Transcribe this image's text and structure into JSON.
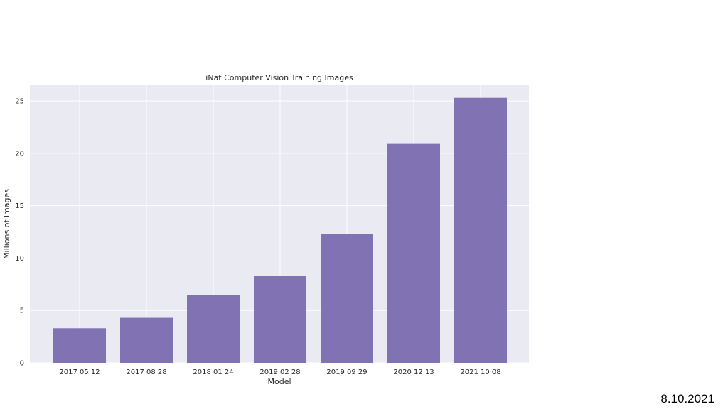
{
  "slide": {
    "date": "8.10.2021"
  },
  "chart_data": {
    "type": "bar",
    "title": "iNat Computer Vision Training Images",
    "xlabel": "Model",
    "ylabel": "Millions of Images",
    "categories": [
      "2017 05 12",
      "2017 08 28",
      "2018 01 24",
      "2019 02 28",
      "2019 09 29",
      "2020 12 13",
      "2021 10 08"
    ],
    "values": [
      3.3,
      4.3,
      6.5,
      8.3,
      12.3,
      20.9,
      25.3
    ],
    "ylim": [
      0,
      26.5
    ],
    "yticks": [
      0,
      5,
      10,
      15,
      20,
      25
    ],
    "grid": true,
    "bar_color": "#8172b3",
    "plot_background": "#eaeaf2",
    "grid_color": "#ffffff"
  }
}
